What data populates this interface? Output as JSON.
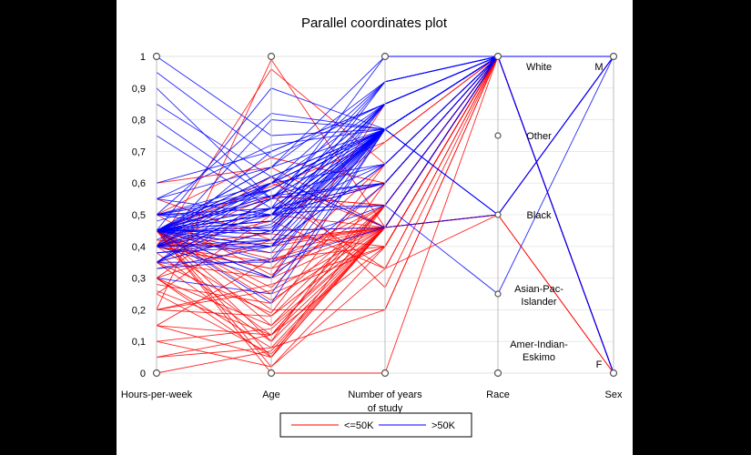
{
  "chart_data": {
    "type": "parallel-coordinates",
    "title": "Parallel coordinates plot",
    "axes": [
      {
        "name": "Hours-per-week",
        "label_lines": [
          "Hours-per-week"
        ]
      },
      {
        "name": "Age",
        "label_lines": [
          "Age"
        ]
      },
      {
        "name": "Number of years of study",
        "label_lines": [
          "Number of years",
          "of study"
        ]
      },
      {
        "name": "Race",
        "label_lines": [
          "Race"
        ]
      },
      {
        "name": "Sex",
        "label_lines": [
          "Sex"
        ]
      }
    ],
    "y_ticks": [
      "0",
      "0,1",
      "0,2",
      "0,3",
      "0,4",
      "0,5",
      "0,6",
      "0,7",
      "0,8",
      "0,9",
      "1"
    ],
    "ylim": [
      0,
      1
    ],
    "race_categories": [
      {
        "value": 1.0,
        "lines": [
          "White"
        ]
      },
      {
        "value": 0.75,
        "lines": [
          "Other"
        ]
      },
      {
        "value": 0.5,
        "lines": [
          "Black"
        ]
      },
      {
        "value": 0.25,
        "lines": [
          "Asian-Pac-",
          "Islander"
        ]
      },
      {
        "value": 0.0,
        "lines": [
          "Amer-Indian-",
          "Eskimo"
        ]
      }
    ],
    "sex_categories": [
      {
        "value": 1.0,
        "label": "M"
      },
      {
        "value": 0.0,
        "label": "F"
      }
    ],
    "legend": {
      "placement": "bottom",
      "entries": [
        {
          "label": "<=50K",
          "color": "#ff0000"
        },
        {
          "label": ">50K",
          "color": "#0000ff"
        }
      ]
    },
    "series": [
      {
        "name": "<=50K",
        "color": "#ff0000",
        "lines": [
          [
            0.45,
            0.23,
            0.46,
            1,
            1
          ],
          [
            0.3,
            0.05,
            0.46,
            1,
            1
          ],
          [
            0.4,
            0.33,
            0.46,
            1,
            0
          ],
          [
            0.26,
            0.12,
            0.4,
            1,
            1
          ],
          [
            0.35,
            0.3,
            0.46,
            1,
            1
          ],
          [
            0.45,
            0.05,
            0.53,
            1,
            0
          ],
          [
            0.4,
            0.41,
            0.46,
            0.5,
            1
          ],
          [
            0.15,
            0.12,
            0.53,
            1,
            0
          ],
          [
            0.1,
            0.02,
            0.4,
            1,
            1
          ],
          [
            0.2,
            0.26,
            0.46,
            1,
            1
          ],
          [
            0.45,
            0.52,
            0.6,
            1,
            1
          ],
          [
            0.3,
            0.15,
            0.53,
            1,
            0
          ],
          [
            0.4,
            0.48,
            0.33,
            1,
            1
          ],
          [
            0.05,
            0.08,
            0.46,
            0.5,
            0
          ],
          [
            0.5,
            0.68,
            0.6,
            1,
            1
          ],
          [
            0.45,
            0.56,
            0.53,
            1,
            1
          ],
          [
            0.0,
            0.07,
            0.46,
            1,
            0
          ],
          [
            0.35,
            0.19,
            0.66,
            1,
            1
          ],
          [
            0.4,
            0.62,
            0.46,
            1,
            1
          ],
          [
            0.45,
            0.36,
            0.4,
            1,
            0
          ],
          [
            0.2,
            0.99,
            0.46,
            1,
            1
          ],
          [
            0.4,
            0.96,
            0.66,
            1,
            0
          ],
          [
            0.45,
            0.02,
            0.33,
            0.5,
            1
          ],
          [
            0.3,
            0.08,
            0.2,
            1,
            0
          ],
          [
            0.4,
            0.18,
            0.46,
            1,
            1
          ],
          [
            0.45,
            0.27,
            0.6,
            1,
            1
          ],
          [
            0.45,
            0.59,
            0.73,
            1,
            1
          ],
          [
            0.55,
            0.42,
            0.46,
            1,
            1
          ],
          [
            0.45,
            0.62,
            0.27,
            1,
            0
          ],
          [
            0.28,
            0.22,
            0.53,
            1,
            0
          ],
          [
            0.15,
            0.36,
            0.46,
            1,
            1
          ],
          [
            0.4,
            0.44,
            0.4,
            1,
            0
          ],
          [
            0.45,
            0.0,
            0.0,
            1,
            1
          ],
          [
            0.38,
            0.12,
            0.46,
            0.5,
            0
          ],
          [
            0.5,
            0.31,
            0.53,
            1,
            1
          ],
          [
            0.35,
            0.1,
            0.6,
            1,
            1
          ],
          [
            0.25,
            0.5,
            0.46,
            1,
            0
          ],
          [
            0.45,
            0.46,
            0.73,
            1,
            1
          ],
          [
            0.42,
            0.38,
            0.46,
            1,
            1
          ],
          [
            0.05,
            0.12,
            0.53,
            1,
            0
          ],
          [
            0.3,
            0.42,
            0.46,
            1,
            1
          ],
          [
            0.45,
            0.25,
            0.4,
            1,
            1
          ],
          [
            0.4,
            0.56,
            0.53,
            1,
            0
          ],
          [
            0.6,
            0.65,
            0.46,
            1,
            1
          ],
          [
            0.45,
            0.2,
            0.2,
            1,
            1
          ],
          [
            0.15,
            0.05,
            0.46,
            1,
            0
          ],
          [
            0.4,
            0.33,
            0.66,
            1,
            1
          ],
          [
            0.45,
            0.6,
            0.46,
            0.5,
            1
          ],
          [
            0.2,
            0.18,
            0.53,
            1,
            0
          ],
          [
            0.35,
            0.45,
            0.46,
            1,
            1
          ],
          [
            0.45,
            0.3,
            0.85,
            1,
            1
          ],
          [
            0.1,
            0.14,
            0.46,
            1,
            0
          ],
          [
            0.4,
            0.5,
            0.6,
            1,
            1
          ],
          [
            0.45,
            0.15,
            0.46,
            1,
            0
          ],
          [
            0.3,
            0.56,
            0.33,
            1,
            1
          ],
          [
            0.25,
            0.06,
            0.46,
            1,
            1
          ],
          [
            0.45,
            0.4,
            0.46,
            1,
            1
          ],
          [
            0.4,
            0.35,
            0.53,
            1,
            0
          ],
          [
            0.45,
            0.1,
            0.46,
            1,
            1
          ],
          [
            0.2,
            0.28,
            0.4,
            1,
            1
          ]
        ]
      },
      {
        "name": ">50K",
        "color": "#0000ff",
        "lines": [
          [
            0.45,
            0.45,
            0.77,
            1,
            1
          ],
          [
            0.35,
            0.55,
            0.77,
            1,
            1
          ],
          [
            0.4,
            0.6,
            0.85,
            1,
            1
          ],
          [
            0.45,
            0.5,
            0.92,
            1,
            1
          ],
          [
            0.33,
            0.4,
            0.77,
            1,
            1
          ],
          [
            0.5,
            0.58,
            0.77,
            0.5,
            1
          ],
          [
            0.45,
            0.65,
            1.0,
            1,
            1
          ],
          [
            0.4,
            0.42,
            0.77,
            1,
            0
          ],
          [
            0.55,
            0.5,
            0.85,
            1,
            1
          ],
          [
            0.45,
            0.3,
            0.6,
            1,
            1
          ],
          [
            1.0,
            0.75,
            0.77,
            1,
            1
          ],
          [
            0.9,
            0.55,
            0.92,
            1,
            1
          ],
          [
            0.85,
            0.62,
            0.77,
            1,
            1
          ],
          [
            0.45,
            0.52,
            0.53,
            1,
            1
          ],
          [
            0.35,
            0.35,
            0.77,
            1,
            1
          ],
          [
            0.4,
            0.4,
            0.66,
            1,
            1
          ],
          [
            0.45,
            0.48,
            0.77,
            0.5,
            1
          ],
          [
            0.6,
            0.7,
            0.85,
            1,
            1
          ],
          [
            0.45,
            0.35,
            0.46,
            1,
            1
          ],
          [
            0.3,
            0.25,
            0.77,
            1,
            1
          ],
          [
            0.45,
            0.56,
            0.6,
            1,
            1
          ],
          [
            0.45,
            0.6,
            0.77,
            1,
            0
          ],
          [
            0.4,
            0.5,
            0.77,
            1,
            1
          ],
          [
            0.5,
            0.82,
            0.77,
            1,
            1
          ],
          [
            0.55,
            0.65,
            0.92,
            1,
            1
          ],
          [
            0.45,
            0.44,
            0.85,
            1,
            1
          ],
          [
            0.35,
            0.52,
            0.77,
            1,
            1
          ],
          [
            0.4,
            0.8,
            0.77,
            1,
            1
          ],
          [
            0.45,
            0.9,
            0.77,
            1,
            1
          ],
          [
            0.5,
            0.6,
            0.66,
            1,
            1
          ],
          [
            0.45,
            0.5,
            0.77,
            1,
            1
          ],
          [
            0.45,
            0.4,
            0.53,
            0.25,
            1
          ],
          [
            0.4,
            0.7,
            0.85,
            1,
            1
          ],
          [
            0.35,
            0.45,
            0.77,
            1,
            0
          ],
          [
            0.45,
            0.55,
            0.85,
            1,
            1
          ],
          [
            0.48,
            0.58,
            0.77,
            1,
            1
          ],
          [
            0.45,
            0.62,
            0.46,
            1,
            1
          ],
          [
            0.33,
            0.36,
            0.77,
            1,
            1
          ],
          [
            0.45,
            0.5,
            0.6,
            1,
            1
          ],
          [
            0.4,
            0.47,
            0.77,
            0.5,
            1
          ],
          [
            0.45,
            0.22,
            0.77,
            1,
            1
          ],
          [
            0.5,
            0.52,
            1.0,
            1,
            1
          ],
          [
            0.45,
            0.65,
            0.77,
            1,
            1
          ],
          [
            0.38,
            0.4,
            0.85,
            1,
            1
          ],
          [
            0.45,
            0.5,
            0.77,
            1,
            1
          ],
          [
            0.45,
            0.42,
            0.77,
            1,
            1
          ],
          [
            0.8,
            0.55,
            0.77,
            1,
            1
          ],
          [
            0.75,
            0.52,
            0.6,
            1,
            1
          ],
          [
            0.95,
            0.68,
            0.85,
            1,
            1
          ],
          [
            0.45,
            0.5,
            0.66,
            1,
            1
          ],
          [
            0.4,
            0.58,
            0.77,
            1,
            0
          ],
          [
            0.45,
            0.48,
            0.85,
            1,
            1
          ],
          [
            0.35,
            0.6,
            0.77,
            1,
            1
          ],
          [
            0.45,
            0.52,
            0.77,
            1,
            1
          ],
          [
            0.5,
            0.45,
            0.46,
            0.5,
            1
          ],
          [
            0.45,
            0.38,
            0.77,
            1,
            1
          ],
          [
            0.42,
            0.6,
            0.92,
            1,
            1
          ],
          [
            0.45,
            0.46,
            0.77,
            1,
            1
          ],
          [
            0.45,
            0.55,
            0.6,
            1,
            1
          ],
          [
            0.55,
            0.72,
            0.77,
            1,
            1
          ],
          [
            0.45,
            0.5,
            0.85,
            1,
            0
          ],
          [
            0.38,
            0.42,
            0.77,
            1,
            1
          ],
          [
            0.45,
            0.6,
            0.77,
            1,
            1
          ],
          [
            0.45,
            0.4,
            0.66,
            1,
            1
          ],
          [
            0.5,
            0.5,
            0.77,
            1,
            1
          ],
          [
            0.45,
            0.45,
            0.92,
            1,
            1
          ],
          [
            0.4,
            0.3,
            0.77,
            1,
            1
          ],
          [
            0.45,
            0.58,
            0.77,
            0.5,
            1
          ],
          [
            0.45,
            0.5,
            0.53,
            1,
            1
          ],
          [
            0.35,
            0.55,
            0.85,
            1,
            1
          ],
          [
            0.45,
            0.62,
            0.77,
            1,
            1
          ],
          [
            0.45,
            0.48,
            0.77,
            1,
            1
          ],
          [
            0.5,
            0.56,
            0.66,
            1,
            0
          ],
          [
            0.45,
            0.44,
            0.77,
            1,
            1
          ],
          [
            0.4,
            0.52,
            0.77,
            1,
            1
          ]
        ]
      }
    ]
  }
}
